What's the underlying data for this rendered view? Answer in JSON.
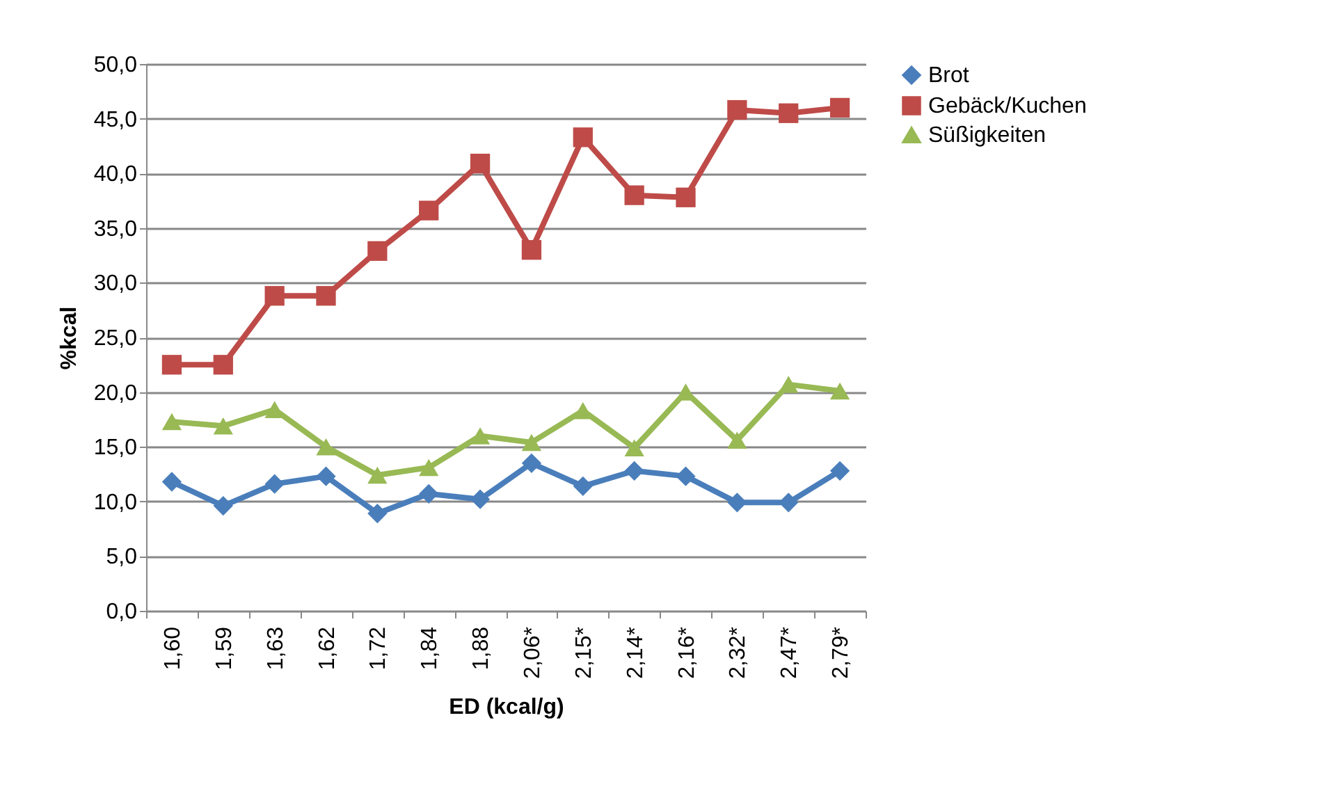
{
  "chart_data": {
    "type": "line",
    "xlabel": "ED (kcal/g)",
    "ylabel": "%kcal",
    "categories": [
      "1,60",
      "1,59",
      "1,63",
      "1,62",
      "1,72",
      "1,84",
      "1,88",
      "2,06*",
      "2,15*",
      "2,14*",
      "2,16*",
      "2,32*",
      "2,47*",
      "2,79*"
    ],
    "series": [
      {
        "name": "Brot",
        "color": "#4a7ebb",
        "marker": "diamond",
        "values": [
          11.8,
          9.6,
          11.6,
          12.3,
          8.9,
          10.7,
          10.2,
          13.5,
          11.4,
          12.8,
          12.3,
          9.9,
          9.9,
          12.8
        ]
      },
      {
        "name": "Gebäck/Kuchen",
        "color": "#be4b48",
        "marker": "square",
        "values": [
          22.5,
          22.5,
          28.8,
          28.8,
          32.9,
          36.6,
          40.9,
          33.0,
          43.3,
          38.0,
          37.8,
          45.8,
          45.5,
          46.0
        ]
      },
      {
        "name": "Süßigkeiten",
        "color": "#98b954",
        "marker": "triangle",
        "values": [
          17.3,
          16.9,
          18.4,
          15.0,
          12.4,
          13.1,
          16.0,
          15.4,
          18.3,
          14.9,
          20.0,
          15.6,
          20.7,
          20.1
        ]
      }
    ],
    "ylim": [
      0,
      50
    ],
    "yticks": [
      {
        "value": 0,
        "label": "0,0"
      },
      {
        "value": 5,
        "label": "5,0"
      },
      {
        "value": 10,
        "label": "10,0"
      },
      {
        "value": 15,
        "label": "15,0"
      },
      {
        "value": 20,
        "label": "20,0"
      },
      {
        "value": 25,
        "label": "25,0"
      },
      {
        "value": 30,
        "label": "30,0"
      },
      {
        "value": 35,
        "label": "35,0"
      },
      {
        "value": 40,
        "label": "40,0"
      },
      {
        "value": 45,
        "label": "45,0"
      },
      {
        "value": 50,
        "label": "50,0"
      }
    ],
    "grid": "y",
    "legend": "right",
    "line_style": "solid"
  }
}
